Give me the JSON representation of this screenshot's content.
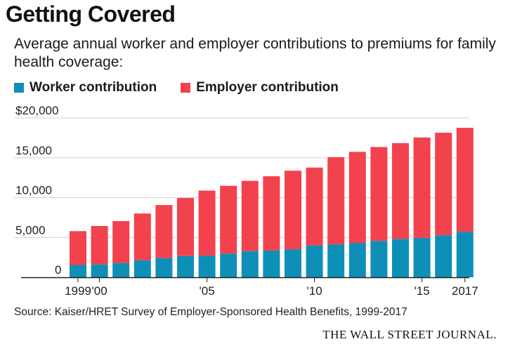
{
  "title": "Getting Covered",
  "subtitle": "Average annual worker and employer contributions to premiums for family health coverage:",
  "source": "Source:  Kaiser/HRET Survey of Employer-Sponsored Health Benefits, 1999-2017",
  "publisher": "THE WALL STREET JOURNAL.",
  "colors": {
    "worker": "#0e8fb8",
    "employer": "#f2424d",
    "grid": "#cfcfcf",
    "axis": "#222222"
  },
  "chart_data": {
    "type": "bar",
    "stacked": true,
    "categories": [
      "1999",
      "2000",
      "2001",
      "2002",
      "2003",
      "2004",
      "2005",
      "2006",
      "2007",
      "2008",
      "2009",
      "2010",
      "2011",
      "2012",
      "2013",
      "2014",
      "2015",
      "2016",
      "2017"
    ],
    "series": [
      {
        "name": "Worker contribution",
        "color": "#0e8fb8",
        "values": [
          1543,
          1619,
          1787,
          2137,
          2412,
          2661,
          2713,
          2973,
          3281,
          3354,
          3515,
          3997,
          4129,
          4316,
          4565,
          4823,
          4955,
          5277,
          5714
        ]
      },
      {
        "name": "Employer contribution",
        "color": "#f2424d",
        "values": [
          4247,
          4819,
          5269,
          5866,
          6657,
          7289,
          8167,
          8508,
          8824,
          9325,
          9860,
          9773,
          10944,
          11429,
          11786,
          12011,
          12591,
          12865,
          13049
        ]
      }
    ],
    "yticks": [
      0,
      5000,
      10000,
      15000,
      20000
    ],
    "ytick_labels": [
      "0",
      "5,000",
      "10,000",
      "15,000",
      "$20,000"
    ],
    "xtick_labels": [
      {
        "index": 0,
        "label": "1999"
      },
      {
        "index": 1,
        "label": "'00"
      },
      {
        "index": 6,
        "label": "'05"
      },
      {
        "index": 11,
        "label": "'10"
      },
      {
        "index": 16,
        "label": "'15"
      },
      {
        "index": 18,
        "label": "2017"
      }
    ],
    "ylim": [
      0,
      20000
    ],
    "grid": true,
    "legend_position": "top-left"
  }
}
